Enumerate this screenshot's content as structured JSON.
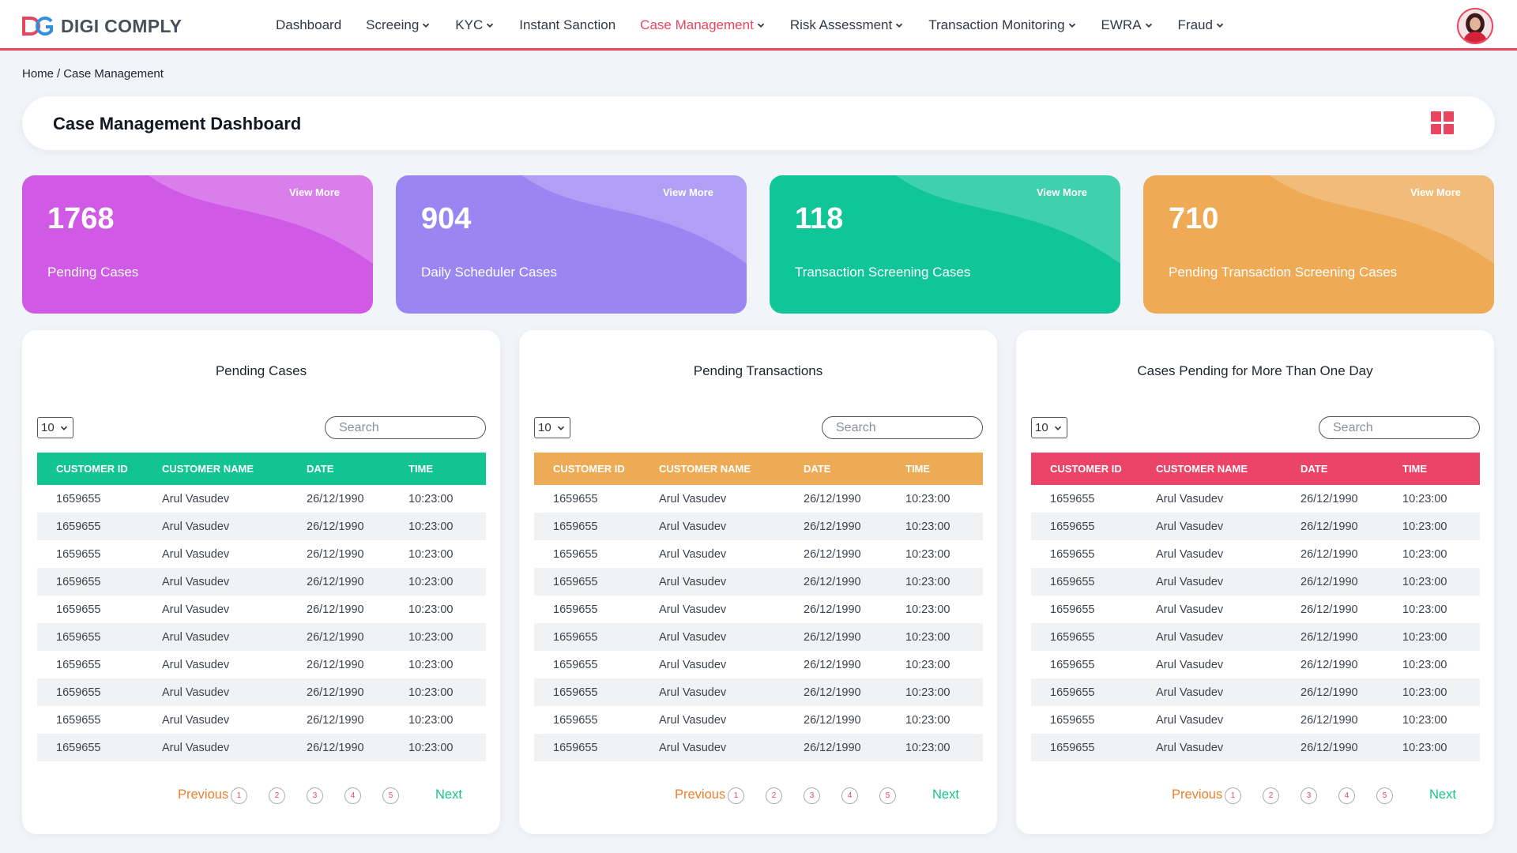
{
  "brand": {
    "name": "DIGI COMPLY",
    "logo_icon": "dg-logo-icon"
  },
  "nav": {
    "items": [
      {
        "label": "Dashboard",
        "has_dropdown": false,
        "active": false
      },
      {
        "label": "Screeing",
        "has_dropdown": true,
        "active": false
      },
      {
        "label": "KYC",
        "has_dropdown": true,
        "active": false
      },
      {
        "label": "Instant Sanction",
        "has_dropdown": false,
        "active": false
      },
      {
        "label": "Case Management",
        "has_dropdown": true,
        "active": true
      },
      {
        "label": "Risk Assessment",
        "has_dropdown": true,
        "active": false
      },
      {
        "label": "Transaction Monitoring",
        "has_dropdown": true,
        "active": false
      },
      {
        "label": "EWRA",
        "has_dropdown": true,
        "active": false
      },
      {
        "label": "Fraud",
        "has_dropdown": true,
        "active": false
      }
    ],
    "accent": "#e8455f"
  },
  "breadcrumb": {
    "home": "Home",
    "separator": "/",
    "current": "Case Management"
  },
  "page": {
    "title": "Case Management Dashboard",
    "layout_icon": "grid-icon"
  },
  "stats": [
    {
      "value": "1768",
      "label": "Pending Cases",
      "link": "View More",
      "color": "#d05ae6"
    },
    {
      "value": "904",
      "label": "Daily Scheduler Cases",
      "link": "View More",
      "color": "#9a86f3"
    },
    {
      "value": "118",
      "label": "Transaction Screening Cases",
      "link": "View More",
      "color": "#10c699"
    },
    {
      "value": "710",
      "label": "Pending Transaction Screening Cases",
      "link": "View More",
      "color": "#eeaa54"
    }
  ],
  "panels": [
    {
      "title": "Pending Cases",
      "header_color": "#12c491",
      "page_size": "10",
      "search_placeholder": "Search",
      "columns": [
        "CUSTOMER ID",
        "CUSTOMER NAME",
        "DATE",
        "TIME"
      ],
      "rows": [
        [
          "1659655",
          "Arul Vasudev",
          "26/12/1990",
          "10:23:00"
        ],
        [
          "1659655",
          "Arul Vasudev",
          "26/12/1990",
          "10:23:00"
        ],
        [
          "1659655",
          "Arul Vasudev",
          "26/12/1990",
          "10:23:00"
        ],
        [
          "1659655",
          "Arul Vasudev",
          "26/12/1990",
          "10:23:00"
        ],
        [
          "1659655",
          "Arul Vasudev",
          "26/12/1990",
          "10:23:00"
        ],
        [
          "1659655",
          "Arul Vasudev",
          "26/12/1990",
          "10:23:00"
        ],
        [
          "1659655",
          "Arul Vasudev",
          "26/12/1990",
          "10:23:00"
        ],
        [
          "1659655",
          "Arul Vasudev",
          "26/12/1990",
          "10:23:00"
        ],
        [
          "1659655",
          "Arul Vasudev",
          "26/12/1990",
          "10:23:00"
        ],
        [
          "1659655",
          "Arul Vasudev",
          "26/12/1990",
          "10:23:00"
        ]
      ],
      "pagination": {
        "previous": "Previous",
        "next": "Next",
        "pages": [
          "1",
          "2",
          "3",
          "4",
          "5"
        ]
      }
    },
    {
      "title": "Pending Transactions",
      "header_color": "#eeab55",
      "page_size": "10",
      "search_placeholder": "Search",
      "columns": [
        "CUSTOMER ID",
        "CUSTOMER NAME",
        "DATE",
        "TIME"
      ],
      "rows": [
        [
          "1659655",
          "Arul Vasudev",
          "26/12/1990",
          "10:23:00"
        ],
        [
          "1659655",
          "Arul Vasudev",
          "26/12/1990",
          "10:23:00"
        ],
        [
          "1659655",
          "Arul Vasudev",
          "26/12/1990",
          "10:23:00"
        ],
        [
          "1659655",
          "Arul Vasudev",
          "26/12/1990",
          "10:23:00"
        ],
        [
          "1659655",
          "Arul Vasudev",
          "26/12/1990",
          "10:23:00"
        ],
        [
          "1659655",
          "Arul Vasudev",
          "26/12/1990",
          "10:23:00"
        ],
        [
          "1659655",
          "Arul Vasudev",
          "26/12/1990",
          "10:23:00"
        ],
        [
          "1659655",
          "Arul Vasudev",
          "26/12/1990",
          "10:23:00"
        ],
        [
          "1659655",
          "Arul Vasudev",
          "26/12/1990",
          "10:23:00"
        ],
        [
          "1659655",
          "Arul Vasudev",
          "26/12/1990",
          "10:23:00"
        ]
      ],
      "pagination": {
        "previous": "Previous",
        "next": "Next",
        "pages": [
          "1",
          "2",
          "3",
          "4",
          "5"
        ]
      }
    },
    {
      "title": "Cases Pending for More Than One Day",
      "header_color": "#ec4468",
      "page_size": "10",
      "search_placeholder": "Search",
      "columns": [
        "CUSTOMER ID",
        "CUSTOMER NAME",
        "DATE",
        "TIME"
      ],
      "rows": [
        [
          "1659655",
          "Arul Vasudev",
          "26/12/1990",
          "10:23:00"
        ],
        [
          "1659655",
          "Arul Vasudev",
          "26/12/1990",
          "10:23:00"
        ],
        [
          "1659655",
          "Arul Vasudev",
          "26/12/1990",
          "10:23:00"
        ],
        [
          "1659655",
          "Arul Vasudev",
          "26/12/1990",
          "10:23:00"
        ],
        [
          "1659655",
          "Arul Vasudev",
          "26/12/1990",
          "10:23:00"
        ],
        [
          "1659655",
          "Arul Vasudev",
          "26/12/1990",
          "10:23:00"
        ],
        [
          "1659655",
          "Arul Vasudev",
          "26/12/1990",
          "10:23:00"
        ],
        [
          "1659655",
          "Arul Vasudev",
          "26/12/1990",
          "10:23:00"
        ],
        [
          "1659655",
          "Arul Vasudev",
          "26/12/1990",
          "10:23:00"
        ],
        [
          "1659655",
          "Arul Vasudev",
          "26/12/1990",
          "10:23:00"
        ]
      ],
      "pagination": {
        "previous": "Previous",
        "next": "Next",
        "pages": [
          "1",
          "2",
          "3",
          "4",
          "5"
        ]
      }
    }
  ]
}
